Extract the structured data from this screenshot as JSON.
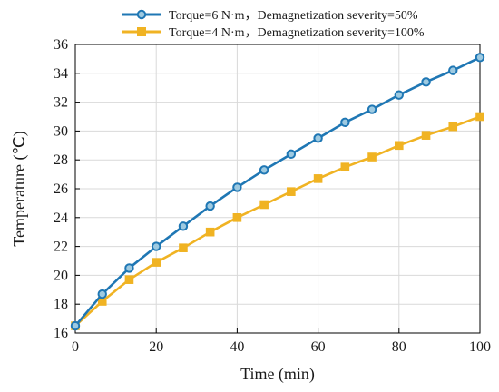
{
  "chart_data": {
    "type": "line",
    "title": "",
    "xlabel": "Time (min)",
    "ylabel": "Temperature (℃)",
    "xlim": [
      0,
      100
    ],
    "ylim": [
      16,
      36
    ],
    "x_ticks": [
      "0",
      "20",
      "40",
      "60",
      "80",
      "100"
    ],
    "y_ticks": [
      "16",
      "18",
      "20",
      "22",
      "24",
      "26",
      "28",
      "30",
      "32",
      "34",
      "36"
    ],
    "grid": true,
    "legend_position": "top",
    "x": [
      0,
      6.67,
      13.33,
      20,
      26.67,
      33.33,
      40,
      46.67,
      53.33,
      60,
      66.67,
      73.33,
      80,
      86.67,
      93.33,
      100
    ],
    "series": [
      {
        "name": "Torque=6 N·m，Demagnetization severity=50%",
        "color": "#1f77b4",
        "marker": "circle",
        "values": [
          16.5,
          18.7,
          20.5,
          22.0,
          23.4,
          24.8,
          26.1,
          27.3,
          28.4,
          29.5,
          30.6,
          31.5,
          32.5,
          33.4,
          34.2,
          35.1
        ]
      },
      {
        "name": "Torque=4 N·m，Demagnetization severity=100%",
        "color": "#f0b323",
        "marker": "square",
        "values": [
          16.5,
          18.2,
          19.7,
          20.9,
          21.9,
          23.0,
          24.0,
          24.9,
          25.8,
          26.7,
          27.5,
          28.2,
          29.0,
          29.7,
          30.3,
          31.0
        ]
      }
    ]
  }
}
